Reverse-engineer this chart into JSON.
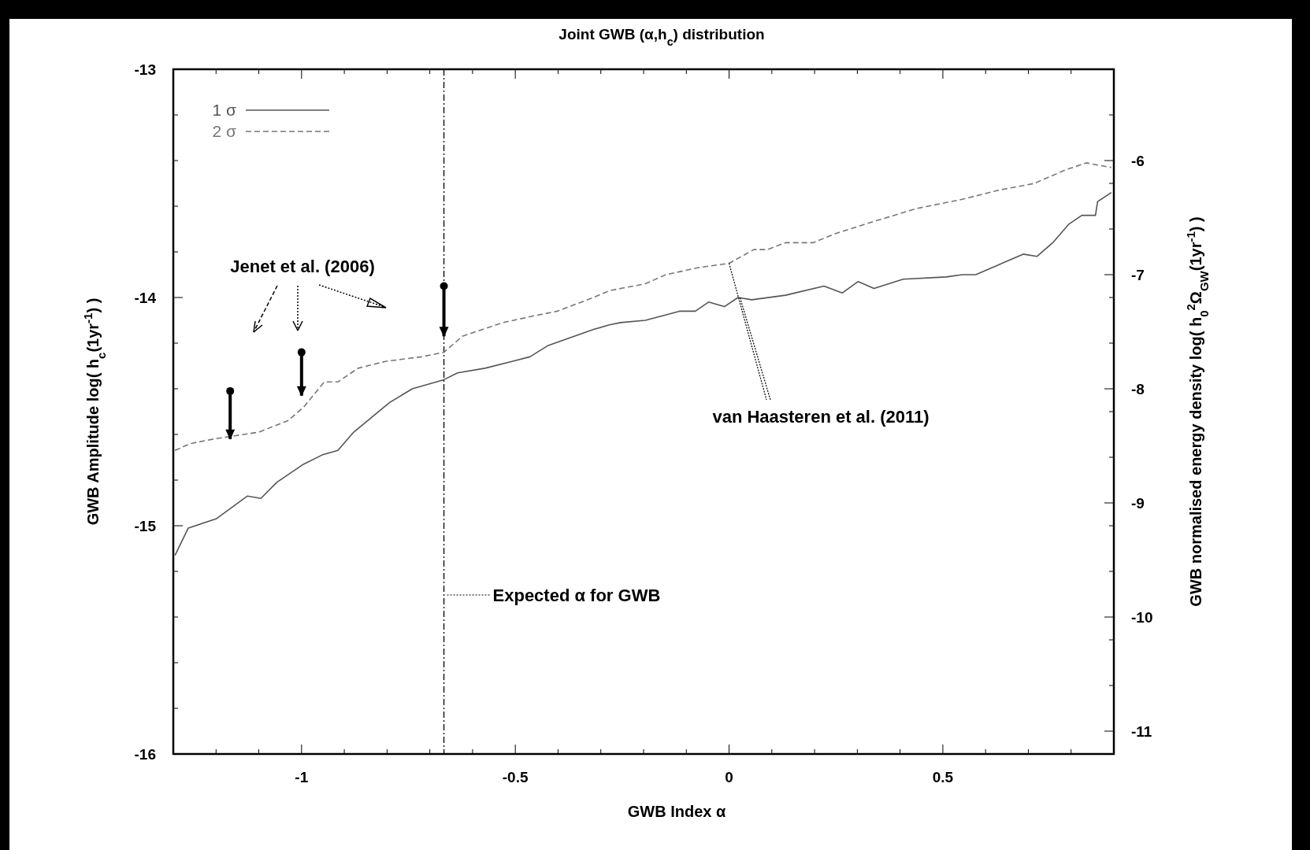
{
  "chart_data": {
    "type": "line",
    "title": "Joint GWB (α,h$_{c}$) distribution",
    "xlabel": "GWB Index α",
    "ylabel": "GWB Amplitude  log( h$_{c}$(1yr$^{-1}$) )",
    "y2label": "GWB normalised energy density  log( h$_{0}$$^{2}$Ω$_{GW}$(1yr$^{-1}$) )",
    "xlim": [
      -1.3,
      0.9
    ],
    "ylim": [
      -16,
      -13
    ],
    "y2lim": [
      -11.2,
      -5.2
    ],
    "xticks": [
      {
        "value": -1.2,
        "label": null
      },
      {
        "value": -1.1,
        "label": null
      },
      -1,
      {
        "value": -0.9,
        "label": null
      },
      {
        "value": -0.8,
        "label": null
      },
      {
        "value": -0.7,
        "label": null
      },
      {
        "value": -0.6,
        "label": null
      },
      -0.5,
      {
        "value": -0.4,
        "label": null
      },
      {
        "value": -0.3,
        "label": null
      },
      {
        "value": -0.2,
        "label": null
      },
      {
        "value": -0.1,
        "label": null
      },
      0,
      {
        "value": 0.1,
        "label": null
      },
      {
        "value": 0.2,
        "label": null
      },
      {
        "value": 0.3,
        "label": null
      },
      {
        "value": 0.4,
        "label": null
      },
      0.5,
      {
        "value": 0.6,
        "label": null
      },
      {
        "value": 0.7,
        "label": null
      },
      {
        "value": 0.8,
        "label": null
      }
    ],
    "yticks": [
      -16,
      {
        "value": -15.8,
        "label": null
      },
      {
        "value": -15.6,
        "label": null
      },
      {
        "value": -15.4,
        "label": null
      },
      {
        "value": -15.2,
        "label": null
      },
      -15,
      {
        "value": -14.8,
        "label": null
      },
      {
        "value": -14.6,
        "label": null
      },
      {
        "value": -14.4,
        "label": null
      },
      {
        "value": -14.2,
        "label": null
      },
      -14,
      {
        "value": -13.8,
        "label": null
      },
      {
        "value": -13.6,
        "label": null
      },
      {
        "value": -13.4,
        "label": null
      },
      {
        "value": -13.2,
        "label": null
      },
      -13
    ],
    "y2ticks": [
      -11,
      {
        "value": -10.6,
        "label": null
      },
      {
        "value": -10.2,
        "label": null
      },
      -10,
      {
        "value": -9.6,
        "label": null
      },
      {
        "value": -9.2,
        "label": null
      },
      -9,
      {
        "value": -8.6,
        "label": null
      },
      {
        "value": -8.2,
        "label": null
      },
      -8,
      {
        "value": -7.6,
        "label": null
      },
      {
        "value": -7.2,
        "label": null
      },
      -7,
      {
        "value": -6.6,
        "label": null
      },
      {
        "value": -6.2,
        "label": null
      },
      -6,
      {
        "value": -5.6,
        "label": null
      }
    ],
    "legend": "top left",
    "grid": false,
    "marker": "none",
    "series": [
      {
        "name": "1 σ",
        "color": "#555555",
        "line_style": "solid",
        "x": [
          -1.296,
          -1.265,
          -1.2,
          -1.127,
          -1.095,
          -1.058,
          -0.995,
          -0.952,
          -0.915,
          -0.878,
          -0.794,
          -0.741,
          -0.667,
          -0.635,
          -0.571,
          -0.508,
          -0.466,
          -0.423,
          -0.317,
          -0.28,
          -0.254,
          -0.196,
          -0.116,
          -0.079,
          -0.048,
          -0.011,
          0.021,
          0.053,
          0.132,
          0.222,
          0.265,
          0.302,
          0.339,
          0.407,
          0.508,
          0.545,
          0.577,
          0.688,
          0.72,
          0.757,
          0.794,
          0.825,
          0.857,
          0.862,
          0.894
        ],
        "values": [
          -15.13,
          -15.01,
          -14.97,
          -14.87,
          -14.88,
          -14.81,
          -14.73,
          -14.69,
          -14.67,
          -14.59,
          -14.46,
          -14.4,
          -14.36,
          -14.33,
          -14.31,
          -14.28,
          -14.26,
          -14.21,
          -14.14,
          -14.12,
          -14.11,
          -14.1,
          -14.06,
          -14.06,
          -14.02,
          -14.04,
          -14.0,
          -14.01,
          -13.99,
          -13.95,
          -13.98,
          -13.93,
          -13.96,
          -13.92,
          -13.91,
          -13.9,
          -13.9,
          -13.81,
          -13.82,
          -13.76,
          -13.68,
          -13.64,
          -13.64,
          -13.58,
          -13.54
        ]
      },
      {
        "name": "2 σ",
        "color": "#777777",
        "line_style": "dashed",
        "x": [
          -1.296,
          -1.26,
          -1.206,
          -1.1,
          -1.032,
          -0.995,
          -0.947,
          -0.915,
          -0.868,
          -0.804,
          -0.72,
          -0.667,
          -0.624,
          -0.529,
          -0.455,
          -0.402,
          -0.317,
          -0.28,
          -0.196,
          -0.148,
          -0.074,
          0,
          0.058,
          0.09,
          0.132,
          0.196,
          0.249,
          0.333,
          0.439,
          0.545,
          0.63,
          0.714,
          0.788,
          0.836,
          0.862,
          0.894
        ],
        "values": [
          -14.67,
          -14.64,
          -14.62,
          -14.59,
          -14.54,
          -14.48,
          -14.37,
          -14.37,
          -14.31,
          -14.28,
          -14.26,
          -14.24,
          -14.17,
          -14.11,
          -14.08,
          -14.06,
          -14.0,
          -13.97,
          -13.94,
          -13.9,
          -13.87,
          -13.85,
          -13.79,
          -13.79,
          -13.76,
          -13.76,
          -13.72,
          -13.67,
          -13.61,
          -13.57,
          -13.53,
          -13.5,
          -13.44,
          -13.41,
          -13.42,
          -13.43
        ]
      },
      {
        "type": "scatter",
        "color": "#000000",
        "marker": "circle",
        "x": [
          -1.167,
          -1.0,
          -0.667
        ],
        "values": [
          -14.41,
          -14.24,
          -13.95
        ],
        "errors": [
          [
            -14.62,
            -14.41
          ],
          [
            -14.43,
            -14.24
          ],
          [
            -14.17,
            -13.95
          ]
        ]
      }
    ],
    "ref_lines": [
      {
        "axis": "x",
        "value": -0.667,
        "label": "Expected α for GWB",
        "color": "#000000",
        "line_style": "dashdot"
      }
    ],
    "annotations": [
      "Jenet et al. (2006)",
      {
        "text": "van Haasteren et al. (2011)",
        "x": 0,
        "y": -13.85
      }
    ]
  }
}
